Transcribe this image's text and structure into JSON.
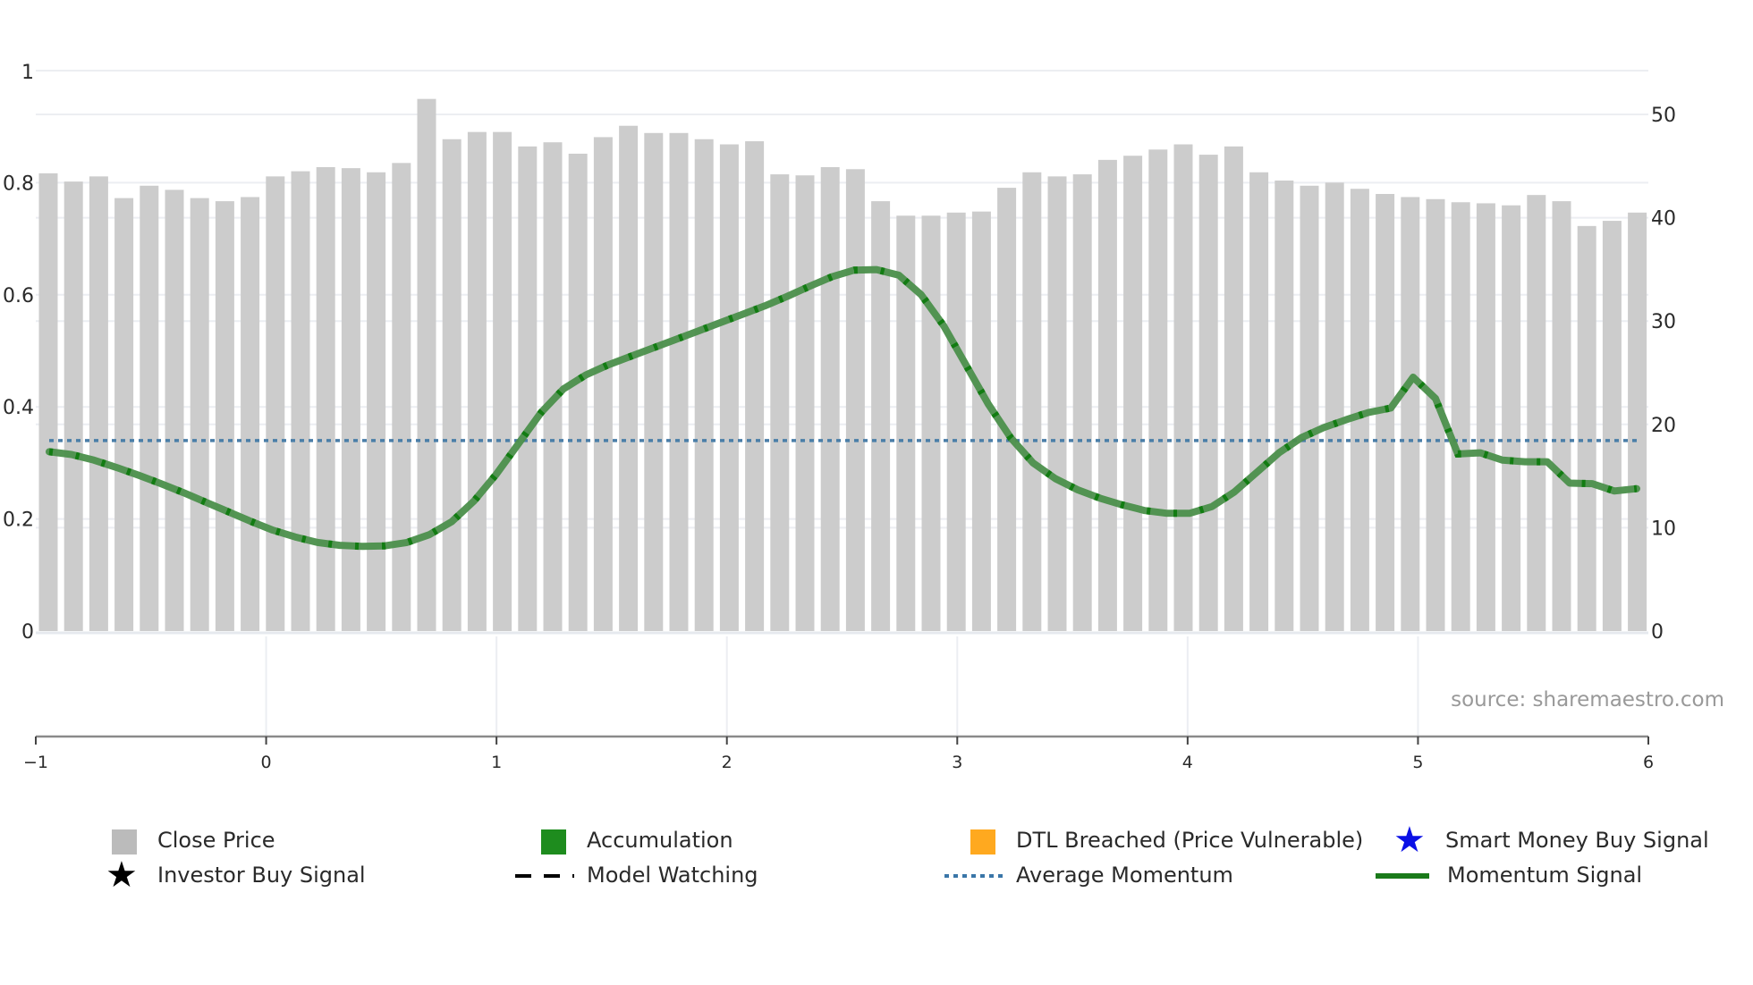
{
  "source_label": "source: sharemaestro.com",
  "legend": [
    {
      "label": "Close Price",
      "symbol": "square",
      "color": "#bbbbbb"
    },
    {
      "label": "Accumulation",
      "symbol": "square",
      "color": "#1e8c1e"
    },
    {
      "label": "DTL Breached (Price Vulnerable)",
      "symbol": "square",
      "color": "#ffa91f"
    },
    {
      "label": "Smart Money Buy Signal",
      "symbol": "star",
      "color": "#0a10e6"
    },
    {
      "label": "Investor Buy Signal",
      "symbol": "star",
      "color": "#000000"
    },
    {
      "label": "Model Watching",
      "symbol": "dash",
      "color": "#000000"
    },
    {
      "label": "Average Momentum",
      "symbol": "dot",
      "color": "#3a76a8"
    },
    {
      "label": "Momentum Signal",
      "symbol": "line",
      "color": "#1a7a1a"
    }
  ],
  "colors": {
    "bar": "#cccccc",
    "momentum_line": "#4b8f4b",
    "momentum_dash": "#0b7a0b",
    "average_momentum": "#4a7ea8",
    "grid": "#eceef2",
    "axis": "#8a8a8a"
  },
  "chart_data": {
    "type": "bar+line",
    "title": "",
    "xlabel": "",
    "x_ticks": [
      -1,
      0,
      1,
      2,
      3,
      4,
      5,
      6
    ],
    "xlim": [
      -1,
      6
    ],
    "left_axis": {
      "ticks": [
        0,
        0.2,
        0.4,
        0.6,
        0.8,
        1
      ],
      "tick_labels": [
        "0",
        "0.2",
        "0.4",
        "0.6",
        "0.8",
        "1"
      ],
      "ylim": [
        0,
        1
      ]
    },
    "right_axis": {
      "ticks": [
        0,
        10,
        20,
        30,
        40,
        50
      ],
      "tick_labels": [
        "0",
        "10",
        "20",
        "30",
        "40",
        "50"
      ],
      "ylim": [
        0,
        54.3
      ]
    },
    "grid": true,
    "legend_position": "bottom",
    "series": [
      {
        "name": "Close Price",
        "type": "bar",
        "axis": "right",
        "values": [
          44.3,
          43.5,
          44.0,
          41.9,
          43.1,
          42.7,
          41.9,
          41.6,
          42.0,
          44.0,
          44.5,
          44.9,
          44.8,
          44.4,
          45.3,
          51.5,
          47.6,
          48.3,
          48.3,
          46.9,
          47.3,
          46.2,
          47.8,
          48.9,
          48.2,
          48.2,
          47.6,
          47.1,
          47.4,
          44.2,
          44.1,
          44.9,
          44.7,
          41.6,
          40.2,
          40.2,
          40.5,
          40.6,
          42.9,
          44.4,
          44.0,
          44.2,
          45.6,
          46.0,
          46.6,
          47.1,
          46.1,
          46.9,
          44.4,
          43.6,
          43.1,
          43.4,
          42.8,
          42.3,
          42.0,
          41.8,
          41.5,
          41.4,
          41.2,
          42.2,
          41.6,
          39.2,
          39.7,
          40.5
        ]
      },
      {
        "name": "Momentum Signal",
        "type": "line",
        "axis": "left",
        "values": [
          0.32,
          0.315,
          0.305,
          0.292,
          0.278,
          0.263,
          0.247,
          0.23,
          0.213,
          0.196,
          0.18,
          0.168,
          0.158,
          0.153,
          0.151,
          0.152,
          0.158,
          0.172,
          0.195,
          0.232,
          0.28,
          0.335,
          0.39,
          0.432,
          0.457,
          0.475,
          0.49,
          0.505,
          0.52,
          0.535,
          0.55,
          0.565,
          0.58,
          0.597,
          0.615,
          0.632,
          0.644,
          0.645,
          0.635,
          0.6,
          0.545,
          0.475,
          0.405,
          0.345,
          0.3,
          0.272,
          0.252,
          0.237,
          0.225,
          0.215,
          0.21,
          0.21,
          0.222,
          0.248,
          0.283,
          0.318,
          0.345,
          0.363,
          0.377,
          0.39,
          0.398,
          0.453,
          0.415,
          0.316,
          0.318,
          0.305,
          0.302,
          0.302,
          0.264,
          0.263,
          0.25,
          0.254
        ],
        "x_range": [
          -0.95,
          5.95
        ]
      },
      {
        "name": "Average Momentum",
        "type": "hline",
        "axis": "left",
        "value": 0.34
      }
    ]
  }
}
